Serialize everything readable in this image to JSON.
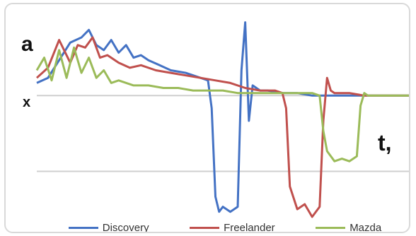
{
  "chart_data": {
    "type": "line",
    "y_axis_letter": "a",
    "x_axis_letter": "t,",
    "baseline_label": "x",
    "grid": true,
    "legend_position": "bottom",
    "ylim": [
      -100,
      60
    ],
    "xlim": [
      0,
      100
    ],
    "gridlines_y": [
      0,
      -60
    ],
    "series": [
      {
        "name": "Discovery",
        "color": "#4472c4",
        "x": [
          0,
          3,
          6,
          9,
          12,
          14,
          16,
          18,
          20,
          22,
          24,
          26,
          28,
          30,
          33,
          36,
          40,
          44,
          46,
          47,
          48,
          49,
          50,
          52,
          54,
          55,
          56,
          57,
          58,
          60,
          62,
          66,
          70,
          74,
          80,
          86,
          92,
          100
        ],
        "y": [
          10,
          14,
          28,
          42,
          46,
          52,
          40,
          36,
          44,
          34,
          40,
          30,
          32,
          28,
          24,
          20,
          18,
          14,
          12,
          -10,
          -80,
          -92,
          -88,
          -92,
          -88,
          20,
          58,
          -20,
          8,
          4,
          4,
          2,
          2,
          0,
          0,
          0,
          0,
          0
        ]
      },
      {
        "name": "Freelander",
        "color": "#c0504d",
        "x": [
          0,
          3,
          6,
          9,
          11,
          13,
          15,
          17,
          19,
          22,
          25,
          28,
          32,
          36,
          40,
          44,
          48,
          52,
          56,
          60,
          64,
          66,
          67,
          68,
          70,
          72,
          74,
          76,
          77,
          78,
          79,
          80,
          84,
          88,
          92,
          100
        ],
        "y": [
          14,
          22,
          44,
          26,
          40,
          38,
          46,
          30,
          32,
          26,
          22,
          24,
          20,
          18,
          16,
          14,
          12,
          10,
          6,
          4,
          4,
          2,
          -10,
          -72,
          -90,
          -86,
          -96,
          -88,
          -20,
          14,
          4,
          2,
          2,
          0,
          0,
          0
        ]
      },
      {
        "name": "Mazda",
        "color": "#9bbb59",
        "x": [
          0,
          2,
          4,
          6,
          8,
          10,
          12,
          14,
          16,
          18,
          20,
          22,
          26,
          30,
          34,
          38,
          42,
          46,
          50,
          54,
          58,
          62,
          66,
          70,
          74,
          76,
          77,
          78,
          80,
          82,
          84,
          86,
          87,
          88,
          89,
          90,
          94,
          100
        ],
        "y": [
          20,
          30,
          12,
          36,
          14,
          38,
          18,
          30,
          14,
          20,
          10,
          12,
          8,
          8,
          6,
          6,
          4,
          4,
          4,
          2,
          2,
          2,
          2,
          2,
          2,
          0,
          -28,
          -44,
          -52,
          -50,
          -52,
          -48,
          -8,
          2,
          0,
          0,
          0,
          0
        ]
      }
    ]
  }
}
